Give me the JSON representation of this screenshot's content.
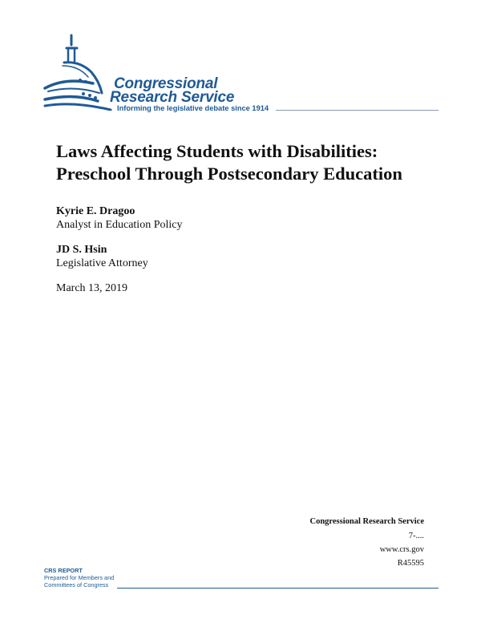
{
  "header": {
    "logo_line1": "Congressional",
    "logo_line2": "Research Service",
    "tagline": "Informing the legislative debate since 1914",
    "brand_color": "#1f5a96"
  },
  "document": {
    "title_line1": "Laws Affecting Students with Disabilities:",
    "title_line2": "Preschool Through Postsecondary Education",
    "authors": [
      {
        "name": "Kyrie E. Dragoo",
        "role": "Analyst in Education Policy"
      },
      {
        "name": "JD S. Hsin",
        "role": "Legislative Attorney"
      }
    ],
    "date": "March 13, 2019"
  },
  "publisher": {
    "name": "Congressional Research Service",
    "phone": "7-....",
    "website": "www.crs.gov",
    "report_number": "R45595"
  },
  "footer": {
    "label": "CRS REPORT",
    "line1": "Prepared for Members and",
    "line2": "Committees of Congress"
  }
}
